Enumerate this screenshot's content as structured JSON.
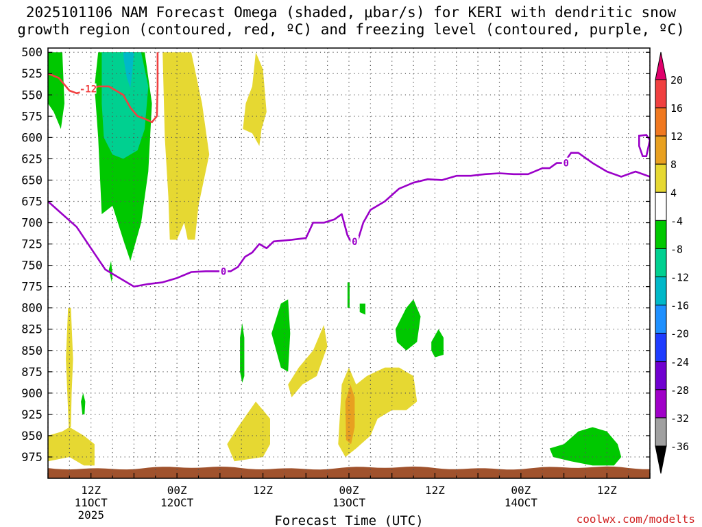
{
  "title_line1": "2025101106 NAM Forecast Omega (shaded, μbar/s) for KERI with dendritic snow",
  "title_line2": "growth region (contoured, red, ºC) and freezing level (contoured, purple, ºC)",
  "watermark": "coolwx.com/modelts",
  "chart_data": {
    "type": "heatmap",
    "title": "2025101106 NAM Forecast Omega (shaded, μbar/s) for KERI with dendritic snow growth region (contoured, red, ºC) and freezing level (contoured, purple, ºC)",
    "xlabel": "Forecast Time (UTC)",
    "ylabel": "",
    "y_ticks": [
      500,
      525,
      550,
      575,
      600,
      625,
      650,
      675,
      700,
      725,
      750,
      775,
      800,
      825,
      850,
      875,
      900,
      925,
      950,
      975
    ],
    "ylim": [
      495,
      1000
    ],
    "y_direction": "pressure increasing downward (hPa)",
    "x_range_hours": [
      0,
      84
    ],
    "x_ticks": [
      {
        "hour": 6,
        "label": "12Z",
        "sub1": "11OCT",
        "sub2": "2025"
      },
      {
        "hour": 18,
        "label": "00Z",
        "sub1": "12OCT",
        "sub2": ""
      },
      {
        "hour": 30,
        "label": "12Z",
        "sub1": "",
        "sub2": ""
      },
      {
        "hour": 42,
        "label": "00Z",
        "sub1": "13OCT",
        "sub2": ""
      },
      {
        "hour": 54,
        "label": "12Z",
        "sub1": "",
        "sub2": ""
      },
      {
        "hour": 66,
        "label": "00Z",
        "sub1": "14OCT",
        "sub2": ""
      },
      {
        "hour": 78,
        "label": "12Z",
        "sub1": "",
        "sub2": ""
      }
    ],
    "grid": true,
    "colorbar": {
      "label_values": [
        20,
        16,
        12,
        8,
        4,
        -4,
        -8,
        -12,
        -16,
        -20,
        -24,
        -28,
        -32,
        -36
      ],
      "colors": [
        {
          "min": 20,
          "max": 99,
          "color": "#e0006b"
        },
        {
          "min": 16,
          "max": 20,
          "color": "#f04040"
        },
        {
          "min": 12,
          "max": 16,
          "color": "#f07820"
        },
        {
          "min": 8,
          "max": 12,
          "color": "#e8a020"
        },
        {
          "min": 4,
          "max": 8,
          "color": "#e6d832"
        },
        {
          "min": -4,
          "max": 4,
          "color": "#ffffff"
        },
        {
          "min": -8,
          "max": -4,
          "color": "#00c800"
        },
        {
          "min": -12,
          "max": -8,
          "color": "#00d090"
        },
        {
          "min": -16,
          "max": -12,
          "color": "#00b8c8"
        },
        {
          "min": -20,
          "max": -16,
          "color": "#1e90ff"
        },
        {
          "min": -24,
          "max": -20,
          "color": "#1e3cff"
        },
        {
          "min": -28,
          "max": -24,
          "color": "#7000d0"
        },
        {
          "min": -32,
          "max": -28,
          "color": "#a000c8"
        },
        {
          "min": -36,
          "max": -32,
          "color": "#a0a0a0"
        },
        {
          "min": -99,
          "max": -36,
          "color": "#000000"
        }
      ]
    },
    "shaded_regions": [
      {
        "omega_range": "-8 to -4",
        "color": "#00c800",
        "polygon_hp": [
          [
            7,
            500
          ],
          [
            13.5,
            500
          ],
          [
            14.5,
            560
          ],
          [
            14,
            640
          ],
          [
            13,
            700
          ],
          [
            12,
            730
          ],
          [
            11.5,
            745
          ],
          [
            10.5,
            720
          ],
          [
            9,
            680
          ],
          [
            7.5,
            690
          ],
          [
            7,
            600
          ],
          [
            6.5,
            540
          ]
        ]
      },
      {
        "omega_range": "-12 to -8",
        "color": "#00d090",
        "polygon_hp": [
          [
            7.5,
            500
          ],
          [
            13,
            500
          ],
          [
            14,
            540
          ],
          [
            13.5,
            590
          ],
          [
            12.5,
            615
          ],
          [
            10.5,
            625
          ],
          [
            9,
            620
          ],
          [
            7.8,
            600
          ],
          [
            7.5,
            560
          ]
        ]
      },
      {
        "omega_range": "-16 to -12",
        "color": "#00b8c8",
        "polygon_hp": [
          [
            10.5,
            500
          ],
          [
            12,
            500
          ],
          [
            11.8,
            520
          ],
          [
            11.5,
            542
          ],
          [
            11,
            530
          ],
          [
            10.6,
            510
          ]
        ]
      },
      {
        "omega_range": "-8 to -4",
        "color": "#00c800",
        "polygon_hp": [
          [
            0,
            500
          ],
          [
            2,
            500
          ],
          [
            2.3,
            560
          ],
          [
            1.8,
            590
          ],
          [
            0.8,
            570
          ],
          [
            0,
            560
          ]
        ]
      },
      {
        "omega_range": "4 to 8",
        "color": "#e6d832",
        "polygon_hp": [
          [
            16,
            500
          ],
          [
            20,
            500
          ],
          [
            21.5,
            560
          ],
          [
            22.5,
            620
          ],
          [
            21,
            680
          ],
          [
            20.5,
            720
          ],
          [
            19.5,
            720
          ],
          [
            19,
            700
          ],
          [
            18,
            720
          ],
          [
            17,
            720
          ],
          [
            16.8,
            670
          ],
          [
            16.3,
            600
          ]
        ]
      },
      {
        "omega_range": "4 to 8",
        "color": "#e6d832",
        "polygon_hp": [
          [
            27.2,
            590
          ],
          [
            27.6,
            560
          ],
          [
            28.5,
            540
          ],
          [
            29,
            500
          ],
          [
            30,
            520
          ],
          [
            30.5,
            570
          ],
          [
            29.8,
            590
          ],
          [
            29.5,
            610
          ],
          [
            28.5,
            595
          ]
        ]
      },
      {
        "omega_range": "4 to 8",
        "color": "#e6d832",
        "polygon_hp": [
          [
            3,
            975
          ],
          [
            0,
            980
          ],
          [
            0,
            950
          ],
          [
            2,
            945
          ],
          [
            3,
            940
          ],
          [
            5,
            950
          ],
          [
            6.5,
            960
          ],
          [
            6.5,
            985
          ],
          [
            5,
            985
          ]
        ]
      },
      {
        "omega_range": "4 to 8",
        "color": "#e6d832",
        "polygon_hp": [
          [
            2.5,
            860
          ],
          [
            2.8,
            800
          ],
          [
            3.2,
            800
          ],
          [
            3.5,
            860
          ],
          [
            3.3,
            900
          ],
          [
            3.2,
            940
          ],
          [
            2.9,
            940
          ],
          [
            2.7,
            900
          ]
        ]
      },
      {
        "omega_range": "4 to 8",
        "color": "#e6d832",
        "polygon_hp": [
          [
            25,
            960
          ],
          [
            26.5,
            940
          ],
          [
            29,
            910
          ],
          [
            31,
            930
          ],
          [
            31,
            960
          ],
          [
            30,
            975
          ],
          [
            26,
            980
          ]
        ]
      },
      {
        "omega_range": "4 to 8",
        "color": "#e6d832",
        "polygon_hp": [
          [
            33.5,
            890
          ],
          [
            35,
            870
          ],
          [
            37,
            850
          ],
          [
            38.5,
            820
          ],
          [
            39,
            845
          ],
          [
            37.5,
            880
          ],
          [
            35.5,
            890
          ],
          [
            34,
            905
          ]
        ]
      },
      {
        "omega_range": "4 to 8",
        "color": "#e6d832",
        "polygon_hp": [
          [
            40.5,
            960
          ],
          [
            41,
            890
          ],
          [
            42,
            870
          ],
          [
            43,
            890
          ],
          [
            44.5,
            880
          ],
          [
            47,
            870
          ],
          [
            49,
            870
          ],
          [
            51,
            880
          ],
          [
            51.5,
            910
          ],
          [
            50,
            920
          ],
          [
            48,
            920
          ],
          [
            46,
            930
          ],
          [
            45,
            950
          ],
          [
            43,
            965
          ],
          [
            41.5,
            975
          ]
        ]
      },
      {
        "omega_range": "8 to 12",
        "color": "#e8a020",
        "polygon_hp": [
          [
            41.5,
            910
          ],
          [
            42.2,
            890
          ],
          [
            42.8,
            905
          ],
          [
            42.8,
            940
          ],
          [
            42.3,
            960
          ],
          [
            41.6,
            955
          ]
        ]
      },
      {
        "omega_range": "-8 to -4",
        "color": "#00c800",
        "polygon_hp": [
          [
            31.2,
            830
          ],
          [
            32.5,
            795
          ],
          [
            33.5,
            790
          ],
          [
            33.8,
            830
          ],
          [
            33.5,
            875
          ],
          [
            32.5,
            870
          ]
        ]
      },
      {
        "omega_range": "-8 to -4",
        "color": "#00c800",
        "polygon_hp": [
          [
            48.5,
            825
          ],
          [
            50,
            800
          ],
          [
            51,
            790
          ],
          [
            52,
            810
          ],
          [
            51.5,
            840
          ],
          [
            50,
            850
          ],
          [
            48.7,
            840
          ]
        ]
      },
      {
        "omega_range": "-8 to -4",
        "color": "#00c800",
        "polygon_hp": [
          [
            53.5,
            840
          ],
          [
            54.5,
            825
          ],
          [
            55.2,
            835
          ],
          [
            55.2,
            855
          ],
          [
            54,
            858
          ],
          [
            53.5,
            850
          ]
        ]
      },
      {
        "omega_range": "-8 to -4",
        "color": "#00c800",
        "polygon_hp": [
          [
            26.8,
            835
          ],
          [
            27.1,
            818
          ],
          [
            27.4,
            835
          ],
          [
            27.4,
            880
          ],
          [
            27.1,
            888
          ],
          [
            26.8,
            875
          ]
        ]
      },
      {
        "omega_range": "-8 to -4",
        "color": "#00c800",
        "polygon_hp": [
          [
            43.5,
            805
          ],
          [
            43.5,
            795
          ],
          [
            44.3,
            795
          ],
          [
            44.3,
            808
          ]
        ]
      },
      {
        "omega_range": "-8 to -4",
        "color": "#00c800",
        "polygon_hp": [
          [
            41.8,
            800
          ],
          [
            41.8,
            770
          ],
          [
            42.1,
            770
          ],
          [
            42.1,
            800
          ]
        ]
      },
      {
        "omega_range": "-8 to -4",
        "color": "#00c800",
        "polygon_hp": [
          [
            4.6,
            910
          ],
          [
            4.9,
            900
          ],
          [
            5.2,
            910
          ],
          [
            5.1,
            925
          ],
          [
            4.8,
            925
          ]
        ]
      },
      {
        "omega_range": "-8 to -4",
        "color": "#00c800",
        "polygon_hp": [
          [
            8.5,
            755
          ],
          [
            8.8,
            745
          ],
          [
            9,
            760
          ],
          [
            8.9,
            770
          ]
        ]
      },
      {
        "omega_range": "-8 to -4",
        "color": "#00c800",
        "polygon_hp": [
          [
            70,
            965
          ],
          [
            72,
            960
          ],
          [
            74,
            945
          ],
          [
            76,
            940
          ],
          [
            78,
            945
          ],
          [
            79.5,
            960
          ],
          [
            80,
            975
          ],
          [
            79,
            985
          ],
          [
            76,
            985
          ],
          [
            73,
            980
          ],
          [
            70.5,
            975
          ]
        ]
      }
    ],
    "freezing_level_0C": {
      "color": "#9a00c8",
      "label": "0",
      "points": [
        [
          0,
          675
        ],
        [
          2,
          690
        ],
        [
          4,
          705
        ],
        [
          6,
          730
        ],
        [
          8,
          755
        ],
        [
          10,
          765
        ],
        [
          12,
          775
        ],
        [
          14,
          772
        ],
        [
          16,
          770
        ],
        [
          18,
          765
        ],
        [
          20,
          758
        ],
        [
          22,
          757
        ],
        [
          24,
          757
        ],
        [
          25.5,
          757
        ],
        [
          26.5,
          752
        ],
        [
          27.5,
          740
        ],
        [
          28.5,
          735
        ],
        [
          29.5,
          725
        ],
        [
          30.5,
          730
        ],
        [
          31.5,
          722
        ],
        [
          34,
          720
        ],
        [
          36,
          718
        ],
        [
          37,
          700
        ],
        [
          38.5,
          700
        ],
        [
          40,
          696
        ],
        [
          41,
          690
        ],
        [
          41.8,
          715
        ],
        [
          42.5,
          725
        ],
        [
          43.2,
          722
        ],
        [
          44,
          700
        ],
        [
          45,
          685
        ],
        [
          47,
          675
        ],
        [
          49,
          660
        ],
        [
          51,
          653
        ],
        [
          53,
          649
        ],
        [
          55,
          650
        ],
        [
          57,
          645
        ],
        [
          59,
          645
        ],
        [
          61,
          643
        ],
        [
          63,
          642
        ],
        [
          65,
          643
        ],
        [
          67,
          643
        ],
        [
          69,
          636
        ],
        [
          70,
          636
        ],
        [
          71,
          630
        ],
        [
          72,
          630
        ],
        [
          73,
          618
        ],
        [
          74,
          618
        ],
        [
          76,
          630
        ],
        [
          78,
          640
        ],
        [
          80,
          646
        ],
        [
          82,
          640
        ],
        [
          84,
          646
        ]
      ],
      "secondary_points": [
        [
          82.5,
          610
        ],
        [
          82.5,
          598
        ],
        [
          83.5,
          597
        ],
        [
          84,
          603
        ],
        [
          83.5,
          622
        ],
        [
          83,
          622
        ]
      ]
    },
    "dendritic_-12C": {
      "color": "#f04040",
      "label": "-12",
      "points": [
        [
          0,
          525
        ],
        [
          1.5,
          530
        ],
        [
          3,
          545
        ],
        [
          4,
          548
        ],
        [
          5.5,
          545
        ],
        [
          7,
          540
        ],
        [
          8.5,
          540
        ],
        [
          9.5,
          545
        ],
        [
          10.5,
          550
        ],
        [
          11.5,
          565
        ],
        [
          12.5,
          575
        ],
        [
          13.5,
          578
        ],
        [
          14.5,
          582
        ],
        [
          15.2,
          575
        ],
        [
          15.3,
          540
        ],
        [
          15.3,
          500
        ]
      ]
    },
    "ground_strip": {
      "color": "#a0522d"
    }
  }
}
